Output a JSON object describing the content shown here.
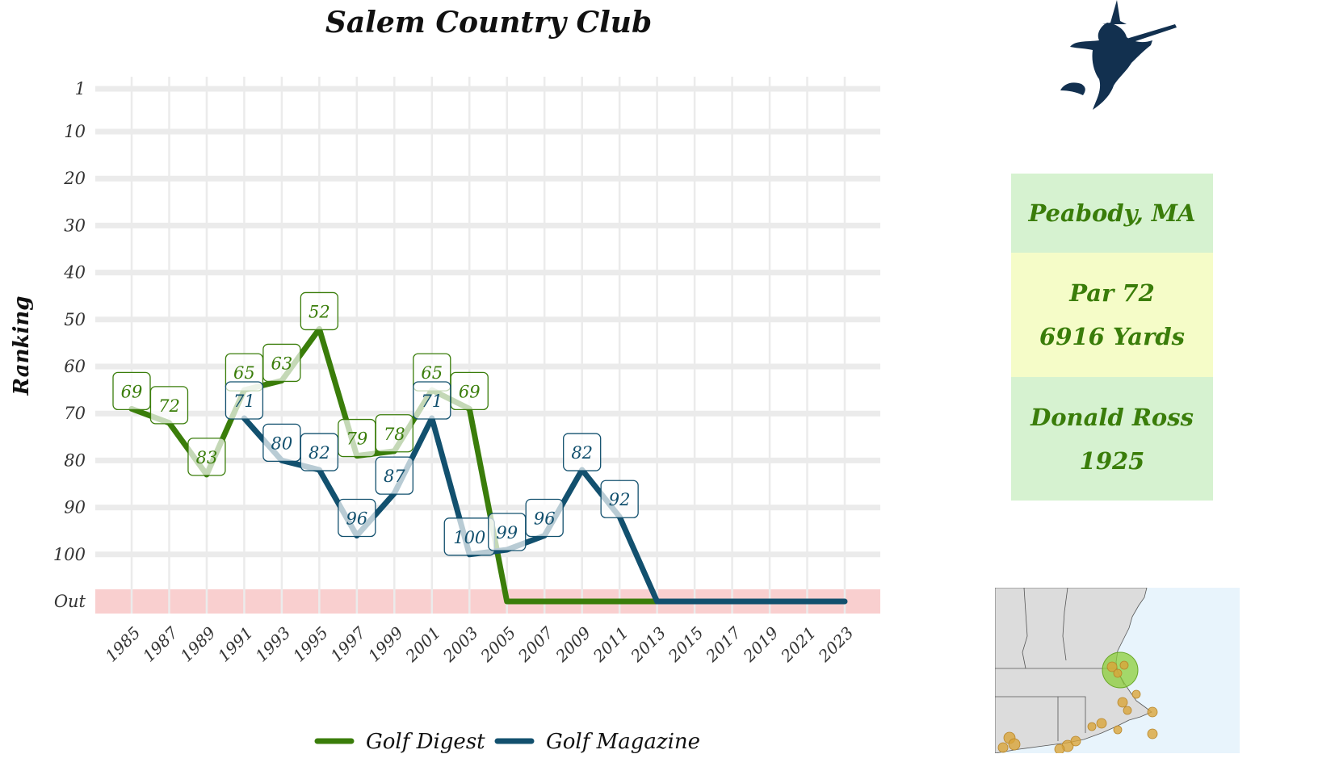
{
  "title": "Salem Country Club",
  "ylabel": "Ranking",
  "info": {
    "location": "Peabody, MA",
    "par": "Par 72",
    "yards": "6916 Yards",
    "architect": "Donald Ross",
    "year": "1925"
  },
  "colors": {
    "golf_digest": "#3a7d0a",
    "golf_magazine": "#12506e",
    "out_band": "#f9cfcf",
    "grid": "#ebebeb",
    "info_green": "#d6f2d0",
    "info_yellow": "#f5fcc8",
    "logo": "#12304f",
    "map_land": "#dcdcdc",
    "map_water": "#e8f4fc",
    "map_highlight": "#8ccf3a",
    "map_other_courses": "#d9a53a"
  },
  "icons": {
    "logo": "witch-on-broom-icon",
    "map": "new-england-map"
  },
  "chart_data": {
    "type": "line",
    "title": "Salem Country Club",
    "xlabel": "",
    "ylabel": "Ranking",
    "y_ticks": [
      "1",
      "10",
      "20",
      "30",
      "40",
      "50",
      "60",
      "70",
      "80",
      "90",
      "100",
      "Out"
    ],
    "y_tick_values": [
      1,
      10,
      20,
      30,
      40,
      50,
      60,
      70,
      80,
      90,
      100,
      110
    ],
    "y_reversed": true,
    "out_value": 110,
    "x_ticks": [
      "1985",
      "1987",
      "1989",
      "1991",
      "1993",
      "1995",
      "1997",
      "1999",
      "2001",
      "2003",
      "2005",
      "2007",
      "2009",
      "2011",
      "2013",
      "2015",
      "2017",
      "2019",
      "2021",
      "2023"
    ],
    "xlim": [
      1985,
      2023
    ],
    "grid": true,
    "legend_position": "bottom",
    "series": [
      {
        "name": "Golf Digest",
        "color": "#3a7d0a",
        "x": [
          1985,
          1987,
          1989,
          1991,
          1993,
          1995,
          1997,
          1999,
          2001,
          2003,
          2005,
          2007,
          2009,
          2011,
          2013
        ],
        "values": [
          69,
          72,
          83,
          65,
          63,
          52,
          79,
          78,
          65,
          69,
          110,
          110,
          110,
          110,
          110
        ],
        "labels": [
          "69",
          "72",
          "83",
          "65",
          "63",
          "52",
          "79",
          "78",
          "65",
          "69",
          null,
          null,
          null,
          null,
          null
        ]
      },
      {
        "name": "Golf Magazine",
        "color": "#12506e",
        "x": [
          1991,
          1993,
          1995,
          1997,
          1999,
          2001,
          2003,
          2005,
          2007,
          2009,
          2011,
          2013,
          2015,
          2017,
          2019,
          2021,
          2023
        ],
        "values": [
          71,
          80,
          82,
          96,
          87,
          71,
          100,
          99,
          96,
          82,
          92,
          110,
          110,
          110,
          110,
          110,
          110
        ],
        "labels": [
          "71",
          "80",
          "82",
          "96",
          "87",
          "71",
          "100",
          "99",
          "96",
          "82",
          "92",
          null,
          null,
          null,
          null,
          null,
          null
        ]
      }
    ]
  }
}
